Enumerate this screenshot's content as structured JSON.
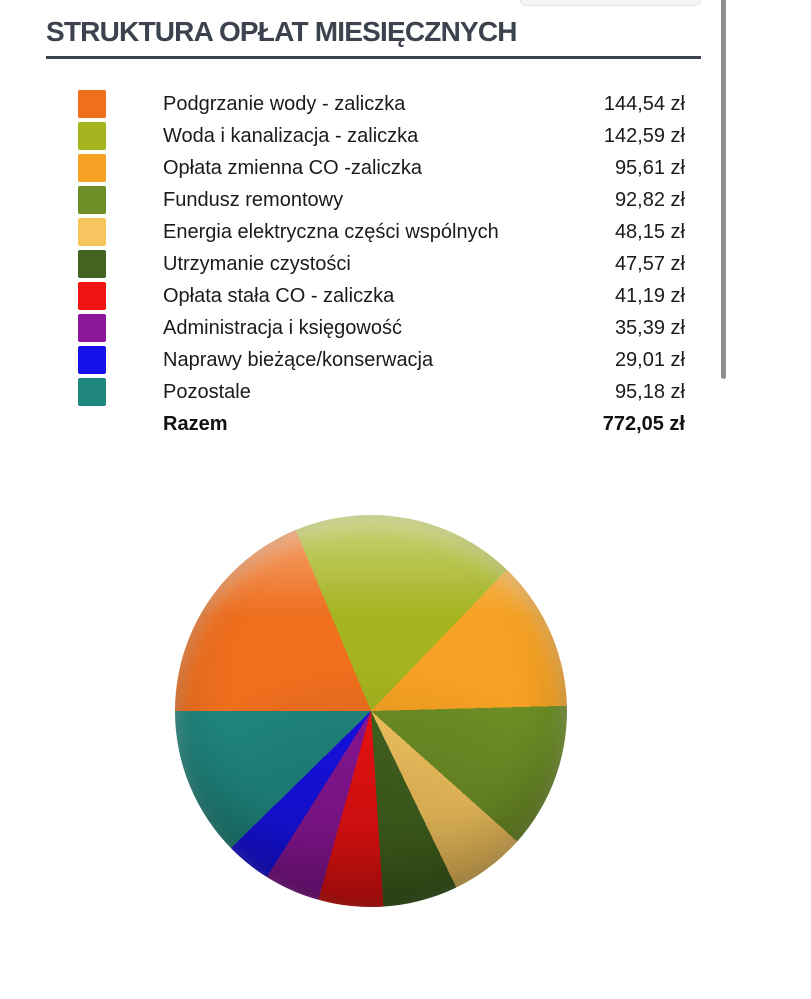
{
  "page": {
    "title": "STRUKTURA OPŁAT MIESIĘCZNYCH"
  },
  "chart_data": {
    "type": "pie",
    "title": "STRUKTURA OPŁAT MIESIĘCZNYCH",
    "unit": "zł",
    "start_angle_deg": 270,
    "direction": "clockwise",
    "legend_position": "top",
    "total_label": "Razem",
    "total_value": 772.05,
    "total_display": "772,05 zł",
    "items": [
      {
        "label": "Podgrzanie wody - zaliczka",
        "value": 144.54,
        "display": "144,54 zł",
        "color": "#EF6F1E"
      },
      {
        "label": "Woda i kanalizacja - zaliczka",
        "value": 142.59,
        "display": "142,59 zł",
        "color": "#A5B41F"
      },
      {
        "label": "Opłata zmienna CO -zaliczka",
        "value": 95.61,
        "display": "95,61 zł",
        "color": "#F6A224"
      },
      {
        "label": "Fundusz remontowy",
        "value": 92.82,
        "display": "92,82 zł",
        "color": "#6E8F26"
      },
      {
        "label": "Energia elektryczna części wspólnych",
        "value": 48.15,
        "display": "48,15 zł",
        "color": "#F6C55F"
      },
      {
        "label": "Utrzymanie czystości",
        "value": 47.57,
        "display": "47,57 zł",
        "color": "#42641F"
      },
      {
        "label": "Opłata stała CO - zaliczka",
        "value": 41.19,
        "display": "41,19 zł",
        "color": "#F11212"
      },
      {
        "label": "Administracja i księgowość",
        "value": 35.39,
        "display": "35,39 zł",
        "color": "#8B1697"
      },
      {
        "label": "Naprawy bieżące/konserwacja",
        "value": 29.01,
        "display": "29,01 zł",
        "color": "#1712E9"
      },
      {
        "label": "Pozostale",
        "value": 95.18,
        "display": "95,18 zł",
        "color": "#20877F"
      }
    ]
  }
}
